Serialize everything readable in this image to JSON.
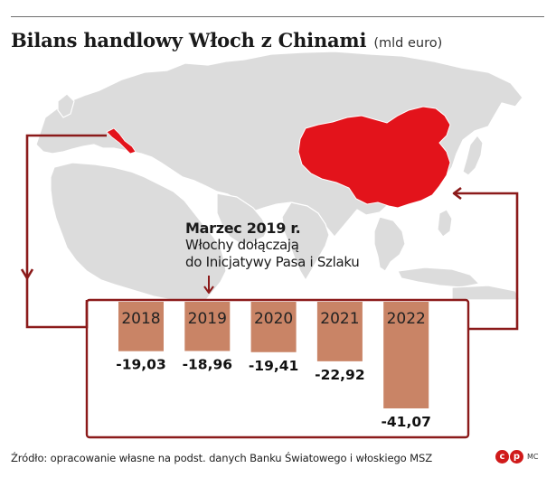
{
  "title": {
    "main": "Bilans handlowy Włoch z Chinami",
    "unit": "(mld euro)"
  },
  "annotation": {
    "heading": "Marzec 2019 r.",
    "line1": "Włochy dołączają",
    "line2": "do Inicjatywy Pasa i Szlaku"
  },
  "source": "Źródło: opracowanie własne na podst. danych Banku Światowego i włoskiego MSZ",
  "logo": {
    "c": "c",
    "p": "p",
    "mc": "MC"
  },
  "colors": {
    "bar": "#c98466",
    "frame": "#8b1a1a",
    "china": "#e3131b",
    "land": "#dcdcdc",
    "coast": "#ffffff"
  },
  "icons": [
    "map-background",
    "loop-arrow-left",
    "loop-arrow-right",
    "pointer-arrow"
  ],
  "chart_data": {
    "type": "bar",
    "categories": [
      "2018",
      "2019",
      "2020",
      "2021",
      "2022"
    ],
    "values": [
      -19.03,
      -18.96,
      -19.41,
      -22.92,
      -41.07
    ],
    "value_labels": [
      "-19,03",
      "-18,96",
      "-19,41",
      "-22,92",
      "-41,07"
    ],
    "ylim": [
      -41.07,
      0
    ],
    "grid": false,
    "legend": "none",
    "title": "Bilans handlowy Włoch z Chinami",
    "unit": "(mld euro)"
  }
}
